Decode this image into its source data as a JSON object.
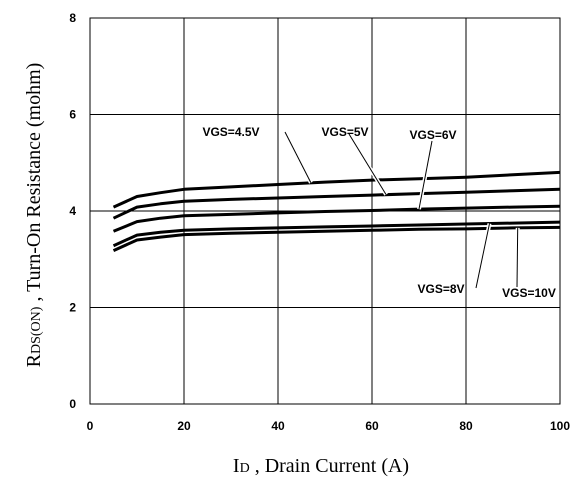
{
  "chart_data": {
    "type": "line",
    "xlabel_main": "I",
    "xlabel_sub": "D",
    "xlabel_rest": " , Drain Current (A)",
    "ylabel_main": "R",
    "ylabel_sub": "DS(ON)",
    "ylabel_rest": " , Turn-On Resistance (mohm)",
    "xlim": [
      0,
      100
    ],
    "ylim": [
      0,
      8
    ],
    "x_ticks": [
      "0",
      "20",
      "40",
      "60",
      "80",
      "100"
    ],
    "y_ticks": [
      "0",
      "2",
      "4",
      "6",
      "8"
    ],
    "grid": true,
    "x": [
      5,
      10,
      15,
      20,
      30,
      40,
      50,
      60,
      70,
      80,
      90,
      100
    ],
    "series": [
      {
        "name": "VGS=4.5V",
        "values": [
          4.08,
          4.3,
          4.38,
          4.45,
          4.5,
          4.55,
          4.6,
          4.64,
          4.67,
          4.7,
          4.75,
          4.8
        ]
      },
      {
        "name": "VGS=5V",
        "values": [
          3.85,
          4.08,
          4.15,
          4.2,
          4.24,
          4.27,
          4.3,
          4.33,
          4.36,
          4.39,
          4.42,
          4.45
        ]
      },
      {
        "name": "VGS=6V",
        "values": [
          3.58,
          3.78,
          3.85,
          3.9,
          3.93,
          3.96,
          3.99,
          4.01,
          4.04,
          4.06,
          4.08,
          4.1
        ]
      },
      {
        "name": "VGS=8V",
        "values": [
          3.28,
          3.5,
          3.56,
          3.6,
          3.63,
          3.65,
          3.67,
          3.69,
          3.71,
          3.73,
          3.75,
          3.77
        ]
      },
      {
        "name": "VGS=10V",
        "values": [
          3.18,
          3.4,
          3.46,
          3.51,
          3.54,
          3.56,
          3.58,
          3.6,
          3.62,
          3.63,
          3.65,
          3.66
        ]
      }
    ]
  }
}
